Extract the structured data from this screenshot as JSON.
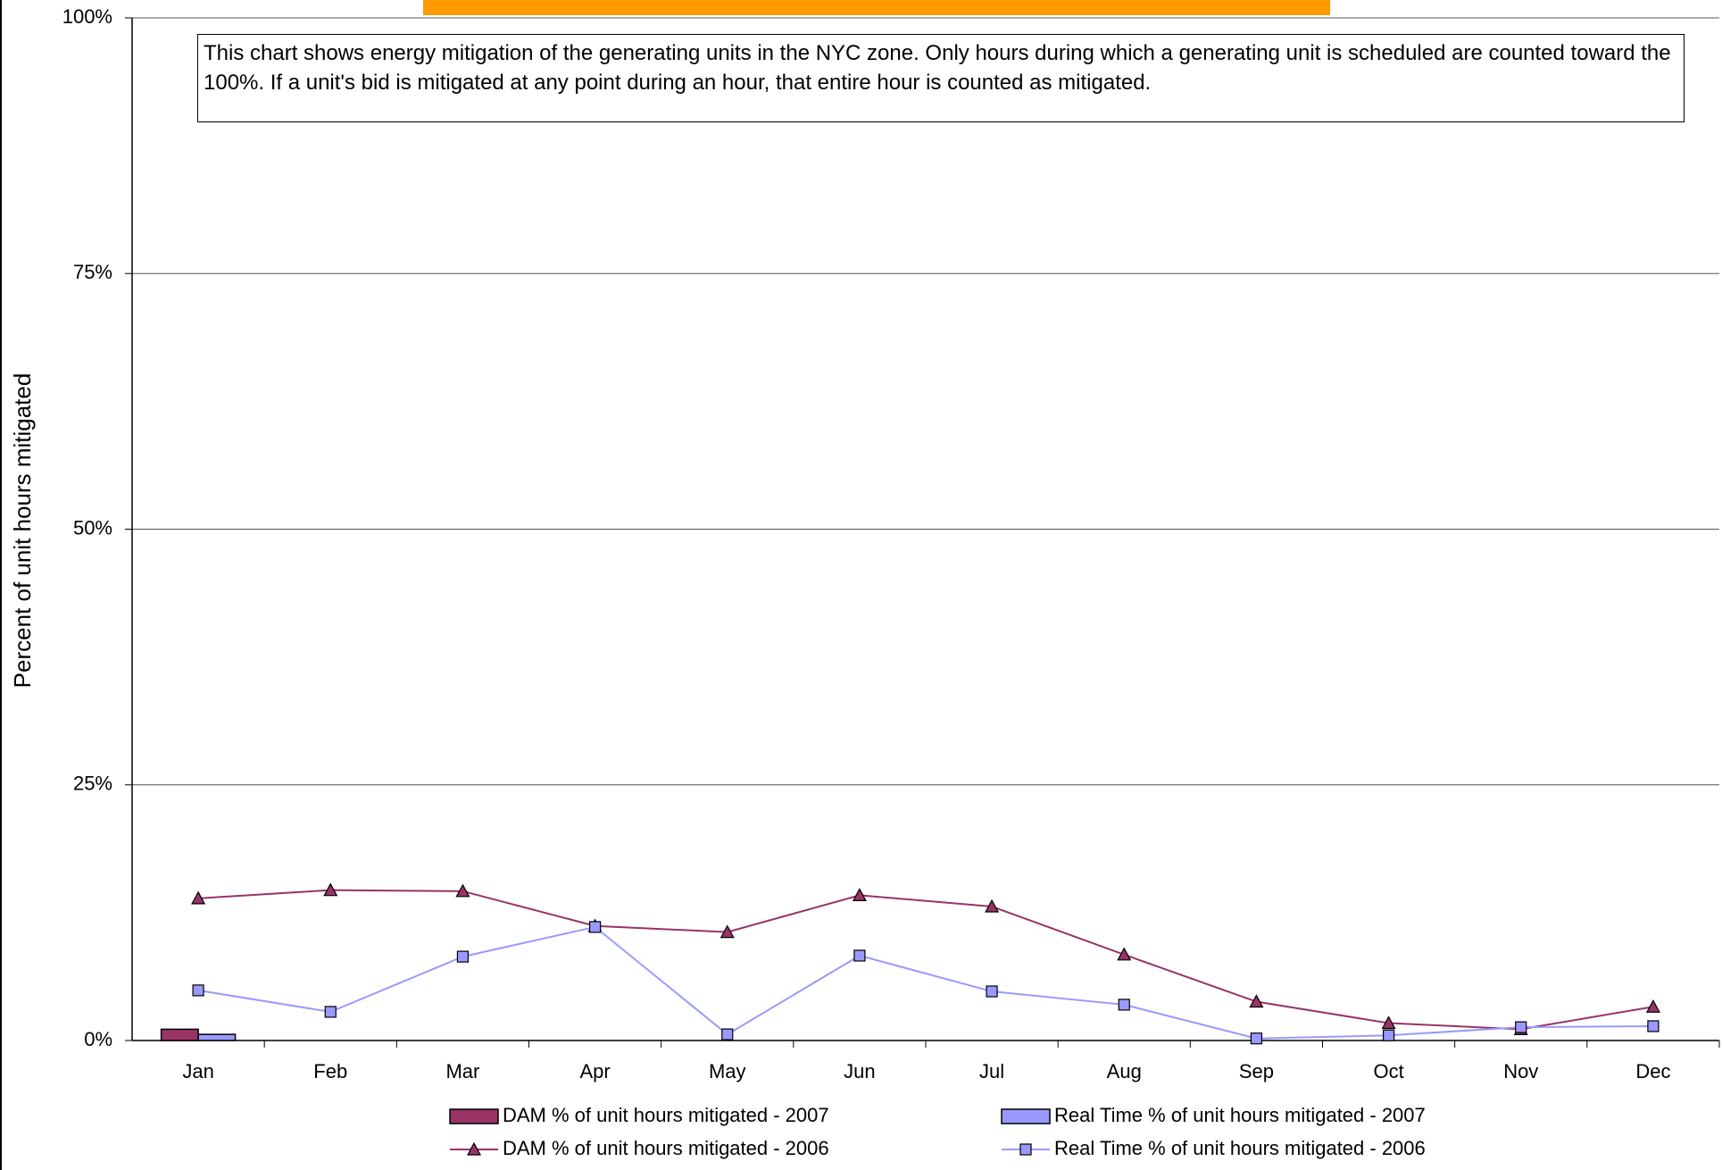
{
  "chart_data": {
    "type": "combo",
    "y_label": "Percent of unit hours mitigated",
    "annotation": "This chart shows energy mitigation of the generating units in the NYC zone.  Only hours during which a generating unit is scheduled are counted toward the 100%. If a unit's bid is mitigated at any point during an hour, that entire hour is counted as mitigated.",
    "categories": [
      "Jan",
      "Feb",
      "Mar",
      "Apr",
      "May",
      "Jun",
      "Jul",
      "Aug",
      "Sep",
      "Oct",
      "Nov",
      "Dec"
    ],
    "series": [
      {
        "name": "DAM % of unit hours mitigated - 2007",
        "type": "bar",
        "color": "#993366",
        "values": [
          1.1,
          null,
          null,
          null,
          null,
          null,
          null,
          null,
          null,
          null,
          null,
          null
        ]
      },
      {
        "name": "Real Time % of unit hours mitigated - 2007",
        "type": "bar",
        "color": "#9999ff",
        "values": [
          0.6,
          null,
          null,
          null,
          null,
          null,
          null,
          null,
          null,
          null,
          null,
          null
        ]
      },
      {
        "name": "DAM % of unit hours mitigated - 2006",
        "type": "line",
        "marker": "triangle",
        "color": "#993366",
        "values": [
          13.9,
          14.7,
          14.6,
          11.2,
          10.6,
          14.2,
          13.1,
          8.4,
          3.8,
          1.7,
          1.1,
          3.3
        ]
      },
      {
        "name": "Real Time % of unit hours mitigated - 2006",
        "type": "line",
        "marker": "square",
        "color": "#9999ff",
        "values": [
          4.9,
          2.8,
          8.2,
          11.1,
          0.6,
          8.3,
          4.8,
          3.5,
          0.2,
          0.5,
          1.3,
          1.4
        ]
      }
    ],
    "ylim": [
      0,
      100
    ],
    "yticks": [
      {
        "value": 0,
        "label": "0%"
      },
      {
        "value": 25,
        "label": "25%"
      },
      {
        "value": 50,
        "label": "50%"
      },
      {
        "value": 75,
        "label": "75%"
      },
      {
        "value": 100,
        "label": "100%"
      }
    ],
    "grid": true
  }
}
